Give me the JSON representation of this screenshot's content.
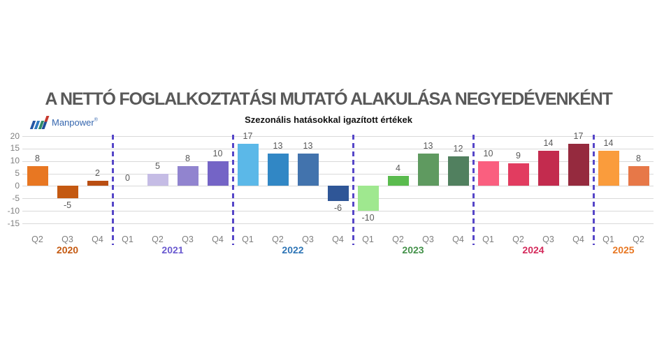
{
  "title": "A NETTÓ FOGLALKOZTATÁSI MUTATÓ ALAKULÁSA NEGYEDÉVENKÉNT",
  "subtitle": "Szezonális hatásokkal igazított értékek",
  "logo": {
    "text": "Manpower",
    "registered_mark": "®",
    "text_color": "#3566AE",
    "stripe_colors": [
      "#2456A4",
      "#2E79C0",
      "#2F8A66",
      "#C8392E",
      "#1F4E9B"
    ]
  },
  "chart_data": {
    "type": "bar",
    "title": "A NETTÓ FOGLALKOZTATÁSI MUTATÓ ALAKULÁSA NEGYEDÉVENKÉNT",
    "subtitle": "Szezonális hatásokkal igazított értékek",
    "xlabel": "",
    "ylabel": "",
    "ylim": [
      -15,
      20
    ],
    "yticks": [
      20,
      15,
      10,
      5,
      0,
      -5,
      -10,
      -15
    ],
    "grid": true,
    "legend": "none",
    "gridline_color": "#D9D9D9",
    "tick_label_color": "#7F7F7F",
    "value_label_color": "#595959",
    "quarter_label_color": "#7F7F7F",
    "separator_color": "#5646C8",
    "groups": [
      {
        "year": "2020",
        "year_color": "#C55A11",
        "categories": [
          "Q2",
          "Q3",
          "Q4"
        ],
        "values": [
          8,
          -5,
          2
        ],
        "bar_colors": [
          "#E87722",
          "#C45911",
          "#B94E12"
        ]
      },
      {
        "year": "2021",
        "year_color": "#6A5AD0",
        "categories": [
          "Q1",
          "Q2",
          "Q3",
          "Q4"
        ],
        "values": [
          0,
          5,
          8,
          10
        ],
        "bar_colors": [
          "#C5BCE5",
          "#C5BCE5",
          "#9184CF",
          "#7464C6"
        ]
      },
      {
        "year": "2022",
        "year_color": "#2E75B6",
        "categories": [
          "Q1",
          "Q2",
          "Q3",
          "Q4"
        ],
        "values": [
          17,
          13,
          13,
          -6
        ],
        "bar_colors": [
          "#5BB8E8",
          "#3187C5",
          "#4273AD",
          "#2F5697"
        ]
      },
      {
        "year": "2023",
        "year_color": "#439149",
        "categories": [
          "Q1",
          "Q2",
          "Q3",
          "Q4"
        ],
        "values": [
          -10,
          4,
          13,
          12
        ],
        "bar_colors": [
          "#9FE88F",
          "#5ABB4E",
          "#5F9A60",
          "#51805F"
        ]
      },
      {
        "year": "2024",
        "year_color": "#D42A5B",
        "categories": [
          "Q1",
          "Q2",
          "Q3",
          "Q4"
        ],
        "values": [
          10,
          9,
          14,
          17
        ],
        "bar_colors": [
          "#FA5F7F",
          "#E23C60",
          "#C32B4E",
          "#952A3E"
        ]
      },
      {
        "year": "2025",
        "year_color": "#E87722",
        "categories": [
          "Q1",
          "Q2"
        ],
        "values": [
          14,
          8
        ],
        "bar_colors": [
          "#FA9C3C",
          "#E77848"
        ]
      }
    ]
  }
}
